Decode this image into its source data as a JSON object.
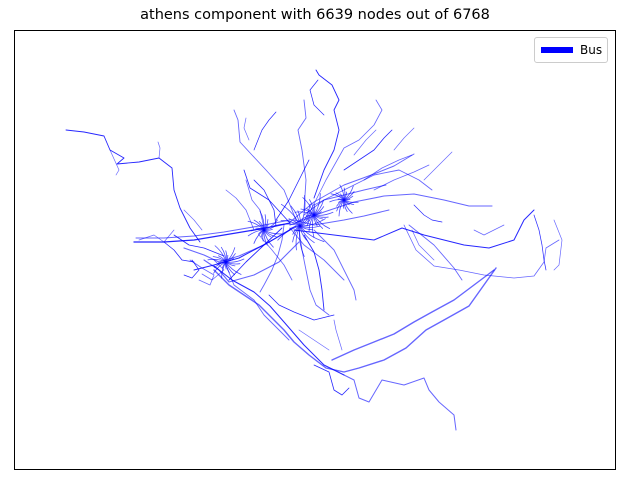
{
  "title": "athens component with 6639 nodes out of 6768",
  "legend": {
    "placement": "upper-right",
    "entries": [
      {
        "label": "Bus",
        "color": "#0000ff"
      }
    ]
  },
  "network": {
    "line_color": "#0000ff",
    "mode": "Bus"
  }
}
